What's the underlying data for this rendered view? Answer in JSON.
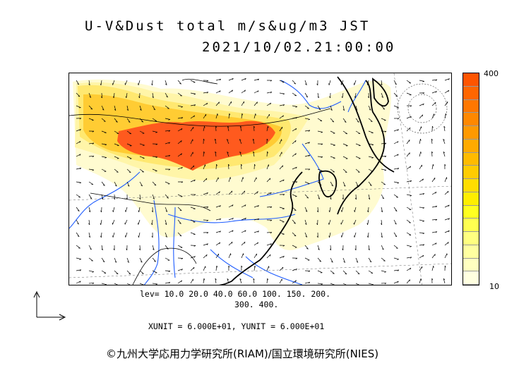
{
  "header": {
    "title": "U-V&Dust total m/s&ug/m3 JST",
    "datetime": "2021/10/02.21:00:00"
  },
  "colorbar": {
    "max_label": "400",
    "min_label": "10",
    "colors": [
      "#ffffe0",
      "#ffffc0",
      "#ffffa0",
      "#ffff80",
      "#ffff50",
      "#ffff20",
      "#ffee00",
      "#ffdd00",
      "#ffcc00",
      "#ffbb00",
      "#ffaa00",
      "#ff9900",
      "#ff8800",
      "#ff7700",
      "#ff6600",
      "#ff5500"
    ]
  },
  "legend": {
    "levels_line1": "lev= 10.0 20.0 40.0 60.0 100. 150. 200.",
    "levels_line2": "300. 400.",
    "units": "XUNIT = 6.000E+01, YUNIT = 6.000E+01"
  },
  "footer": {
    "credit": "©九州大学応用力学研究所(RIAM)/国立環境研究所(NIES)"
  },
  "map": {
    "region": "East Asia",
    "dust_colors": {
      "light": "#fffbd0",
      "pale": "#fff5a8",
      "mid": "#ffe870",
      "strong": "#ffcc33",
      "heavy": "#ff5a1e"
    },
    "coast_color": "#000000",
    "river_color": "#1e5cff",
    "border_color": "#000000"
  }
}
